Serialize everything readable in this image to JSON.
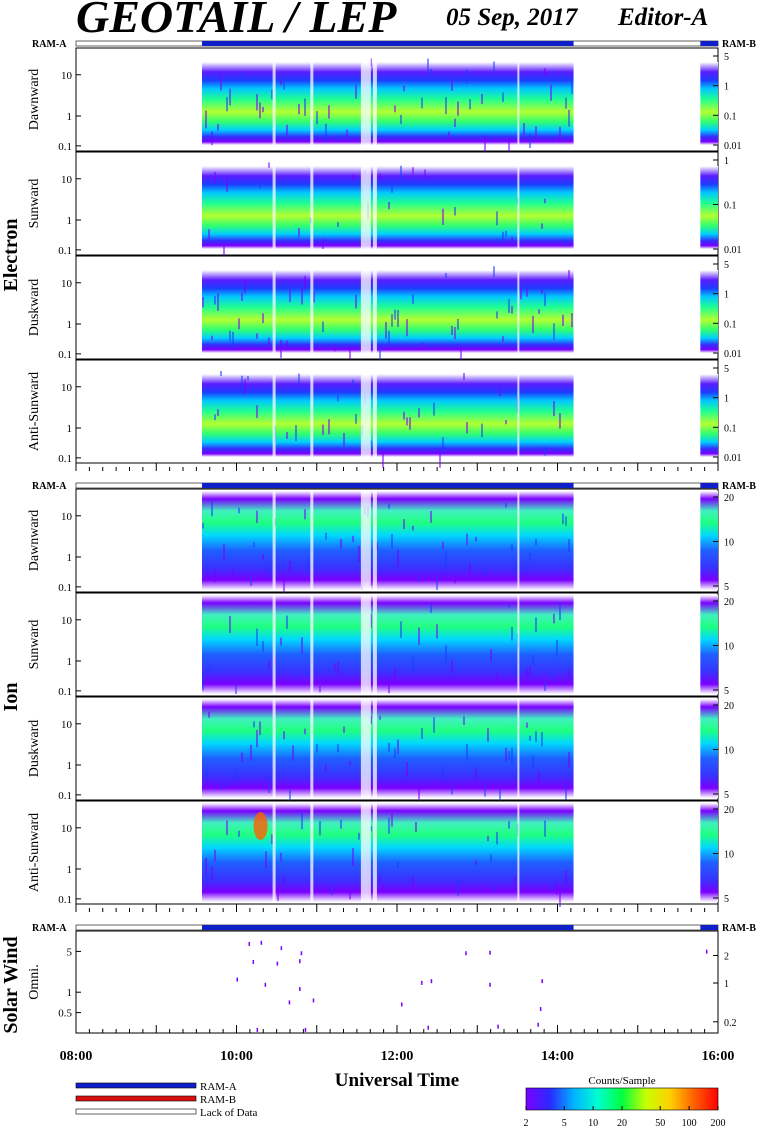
{
  "header": {
    "title": "GEOTAIL / LEP",
    "date": "05 Sep, 2017",
    "editor": "Editor-A"
  },
  "chart_data": [
    {
      "type": "heatmap",
      "group": "Electron",
      "ram_left": "RAM-A",
      "ram_right": "RAM-B",
      "panels": [
        {
          "ylabel": "Dawnward",
          "left_ticks": [
            "10",
            "1",
            "0.1"
          ],
          "right_ticks": [
            "5",
            "1",
            "0.1",
            "0.01"
          ]
        },
        {
          "ylabel": "Sunward",
          "left_ticks": [
            "10",
            "1",
            "0.1"
          ],
          "right_ticks": [
            "1",
            "0.1",
            "0.01"
          ]
        },
        {
          "ylabel": "Duskward",
          "left_ticks": [
            "10",
            "1",
            "0.1"
          ],
          "right_ticks": [
            "5",
            "1",
            "0.1",
            "0.01"
          ]
        },
        {
          "ylabel": "Anti-Sunward",
          "left_ticks": [
            "10",
            "1",
            "0.1"
          ],
          "right_ticks": [
            "5",
            "1",
            "0.1",
            "0.01"
          ]
        }
      ],
      "data_intervals_hours": [
        [
          9.57,
          14.2
        ],
        [
          15.78,
          16.0
        ]
      ]
    },
    {
      "type": "heatmap",
      "group": "Ion",
      "ram_left": "RAM-A",
      "ram_right": "RAM-B",
      "panels": [
        {
          "ylabel": "Dawnward",
          "left_ticks": [
            "10",
            "1",
            "0.1"
          ],
          "right_ticks": [
            "20",
            "10",
            "5"
          ]
        },
        {
          "ylabel": "Sunward",
          "left_ticks": [
            "10",
            "1",
            "0.1"
          ],
          "right_ticks": [
            "20",
            "10",
            "5"
          ]
        },
        {
          "ylabel": "Duskward",
          "left_ticks": [
            "10",
            "1",
            "0.1"
          ],
          "right_ticks": [
            "20",
            "10",
            "5"
          ]
        },
        {
          "ylabel": "Anti-Sunward",
          "left_ticks": [
            "10",
            "1",
            "0.1"
          ],
          "right_ticks": [
            "20",
            "10",
            "5"
          ]
        }
      ],
      "data_intervals_hours": [
        [
          9.57,
          14.2
        ],
        [
          15.78,
          16.0
        ]
      ]
    },
    {
      "type": "scatter",
      "group": "Solar Wind",
      "ram_left": "RAM-A",
      "ram_right": "RAM-B",
      "panels": [
        {
          "ylabel": "Omni.",
          "left_ticks": [
            "5",
            "1",
            "0.5"
          ],
          "right_ticks": [
            "2",
            "1",
            "0.2"
          ]
        }
      ],
      "points": [
        [
          10.15,
          6.5
        ],
        [
          10.3,
          6.8
        ],
        [
          10.55,
          5.5
        ],
        [
          10.8,
          4.5
        ],
        [
          10.2,
          3.2
        ],
        [
          10.5,
          3.0
        ],
        [
          10.78,
          3.3
        ],
        [
          10.0,
          1.6
        ],
        [
          10.35,
          1.3
        ],
        [
          10.78,
          1.1
        ],
        [
          10.65,
          0.65
        ],
        [
          10.95,
          0.7
        ],
        [
          10.25,
          0.22
        ],
        [
          10.85,
          0.22
        ],
        [
          12.85,
          4.5
        ],
        [
          13.15,
          4.6
        ],
        [
          12.3,
          1.4
        ],
        [
          12.42,
          1.5
        ],
        [
          13.15,
          1.3
        ],
        [
          13.8,
          1.5
        ],
        [
          12.05,
          0.6
        ],
        [
          13.78,
          0.5
        ],
        [
          12.38,
          0.24
        ],
        [
          13.25,
          0.25
        ],
        [
          13.75,
          0.27
        ],
        [
          15.85,
          4.8
        ]
      ],
      "data_intervals_hours": [
        [
          9.57,
          14.2
        ],
        [
          15.78,
          16.0
        ]
      ]
    }
  ],
  "x_axis": {
    "label": "Universal Time",
    "ticks": [
      "08:00",
      "10:00",
      "12:00",
      "14:00",
      "16:00"
    ],
    "range_hours": [
      8,
      16
    ]
  },
  "legend": {
    "items": [
      {
        "label": "RAM-A",
        "color": "#1020c8"
      },
      {
        "label": "RAM-B",
        "color": "#d81010"
      },
      {
        "label": "Lack of Data",
        "color": "#ffffff"
      }
    ]
  },
  "colorbar": {
    "title": "Counts/Sample",
    "ticks": [
      "2",
      "5",
      "10",
      "20",
      "50",
      "100",
      "200"
    ],
    "colors": [
      "#7a00ff",
      "#2a2aff",
      "#00b4ff",
      "#00ffd0",
      "#00ff40",
      "#c8ff00",
      "#ffd000",
      "#ff6000",
      "#ff0000"
    ]
  }
}
